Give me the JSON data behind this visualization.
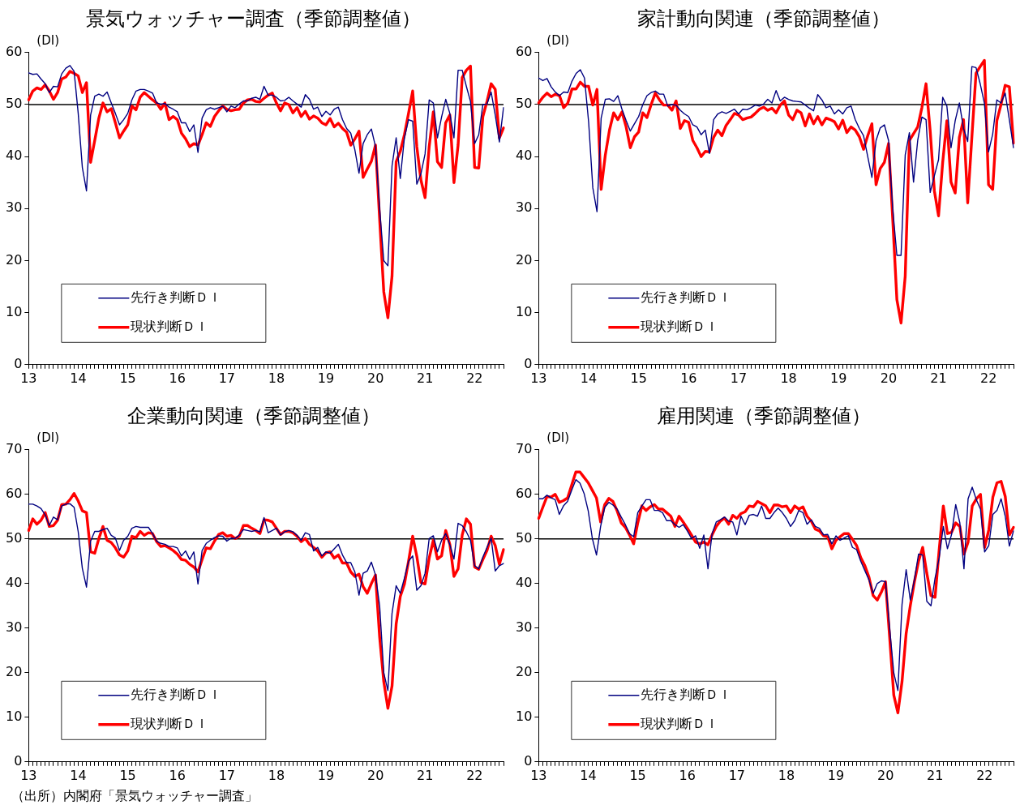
{
  "chart_data": [
    {
      "type": "line",
      "title": "景気ウォッチャー調査（季節調整値）",
      "ylabel": "(DI)",
      "legend": "bottom left",
      "ylim": [
        0,
        60
      ],
      "yticks": [
        0,
        10,
        20,
        30,
        40,
        50,
        60
      ],
      "ref_lines": [
        {
          "axis": "y",
          "value": 50,
          "color": "#000000"
        }
      ],
      "categories": [
        "13",
        null,
        null,
        null,
        null,
        null,
        null,
        null,
        null,
        null,
        null,
        null,
        "14",
        null,
        null,
        null,
        null,
        null,
        null,
        null,
        null,
        null,
        null,
        null,
        "15",
        null,
        null,
        null,
        null,
        null,
        null,
        null,
        null,
        null,
        null,
        null,
        "16",
        null,
        null,
        null,
        null,
        null,
        null,
        null,
        null,
        null,
        null,
        null,
        "17",
        null,
        null,
        null,
        null,
        null,
        null,
        null,
        null,
        null,
        null,
        null,
        "18",
        null,
        null,
        null,
        null,
        null,
        null,
        null,
        null,
        null,
        null,
        null,
        "19",
        null,
        null,
        null,
        null,
        null,
        null,
        null,
        null,
        null,
        null,
        null,
        "20",
        null,
        null,
        null,
        null,
        null,
        null,
        null,
        null,
        null,
        null,
        null,
        "21",
        null,
        null,
        null,
        null,
        null,
        null,
        null,
        null,
        null,
        null,
        null,
        "22",
        null,
        null,
        null,
        null,
        null,
        null,
        null
      ],
      "series": [
        {
          "name": "先行き判断ＤＩ",
          "color": "#000080",
          "values": [
            56.1,
            55.8,
            55.9,
            54.9,
            54,
            52.3,
            53.5,
            53.4,
            55.9,
            57,
            57.5,
            56.4,
            48.3,
            37.9,
            33.4,
            48,
            51.6,
            52,
            51.6,
            52.4,
            50.3,
            48.3,
            46.1,
            47.1,
            48.3,
            50.9,
            52.6,
            52.9,
            52.9,
            52.6,
            52.2,
            50.3,
            50.1,
            50.2,
            49.5,
            49.1,
            48.6,
            46.5,
            46.5,
            44.8,
            46.1,
            40.8,
            47.4,
            49,
            49.4,
            49.1,
            49.4,
            49.7,
            48.6,
            49.7,
            49.4,
            50.1,
            50.7,
            50.7,
            51.2,
            51.4,
            51,
            53.5,
            51.8,
            51.8,
            51.4,
            50.7,
            50.8,
            51.4,
            50.7,
            50.1,
            49.5,
            51.9,
            51,
            49.1,
            49.5,
            47.7,
            48.7,
            48,
            49.1,
            49.5,
            47.1,
            45.4,
            44.5,
            41.3,
            36.8,
            42.5,
            44.2,
            45.3,
            41.9,
            30,
            20,
            19,
            38.2,
            43.6,
            35.8,
            43.6,
            47.1,
            46.8,
            34.7,
            36.7,
            40.5,
            50.9,
            50.3,
            43.6,
            47.6,
            51,
            48.3,
            43.6,
            56.6,
            56.6,
            53.5,
            50.6,
            42.5,
            44.2,
            50,
            50.1,
            52.4,
            48,
            42.8,
            49.4
          ]
        },
        {
          "name": "現状判断ＤＩ",
          "color": "#ff0000",
          "values": [
            50.9,
            52.6,
            53.2,
            52.9,
            53.8,
            52.6,
            51,
            52.3,
            54.9,
            55.3,
            56.4,
            56,
            55.5,
            52.3,
            54.2,
            38.9,
            43.1,
            47.4,
            50.3,
            48.6,
            49.2,
            46.5,
            43.6,
            44.9,
            46.1,
            49.7,
            49,
            51.4,
            52.3,
            51.6,
            50.9,
            50.3,
            49.1,
            50.3,
            47.1,
            47.7,
            47.1,
            44.5,
            43.4,
            41.9,
            42.5,
            42.2,
            44.2,
            46.5,
            45.8,
            47.7,
            48.8,
            49.7,
            49.1,
            48.8,
            49,
            49.1,
            50.3,
            50.9,
            51,
            50.6,
            50.5,
            51.2,
            51.8,
            52.2,
            50.3,
            48.8,
            50.3,
            50,
            48.4,
            49.4,
            47.7,
            48.7,
            47.2,
            47.8,
            47.4,
            46.5,
            46.1,
            47.3,
            45.7,
            46.4,
            45.4,
            44.7,
            42.2,
            43.4,
            44.9,
            36,
            37.6,
            39.1,
            42.2,
            28,
            14,
            9,
            17,
            39,
            41,
            44.2,
            48.3,
            52.6,
            41.9,
            35.5,
            32.1,
            41.9,
            48.6,
            39,
            37.9,
            46.5,
            48,
            35,
            42.2,
            55.2,
            56.6,
            57.4,
            37.9,
            37.8,
            47.7,
            50.6,
            54,
            52.9,
            43.6,
            45.5
          ]
        }
      ]
    },
    {
      "type": "line",
      "title": "家計動向関連（季節調整値）",
      "ylabel": "(DI)",
      "legend": "bottom left",
      "ylim": [
        0,
        60
      ],
      "yticks": [
        0,
        10,
        20,
        30,
        40,
        50,
        60
      ],
      "ref_lines": [
        {
          "axis": "y",
          "value": 50,
          "color": "#000000"
        }
      ],
      "categories": [
        "13",
        null,
        null,
        null,
        null,
        null,
        null,
        null,
        null,
        null,
        null,
        null,
        "14",
        null,
        null,
        null,
        null,
        null,
        null,
        null,
        null,
        null,
        null,
        null,
        "15",
        null,
        null,
        null,
        null,
        null,
        null,
        null,
        null,
        null,
        null,
        null,
        "16",
        null,
        null,
        null,
        null,
        null,
        null,
        null,
        null,
        null,
        null,
        null,
        "17",
        null,
        null,
        null,
        null,
        null,
        null,
        null,
        null,
        null,
        null,
        null,
        "18",
        null,
        null,
        null,
        null,
        null,
        null,
        null,
        null,
        null,
        null,
        null,
        "19",
        null,
        null,
        null,
        null,
        null,
        null,
        null,
        null,
        null,
        null,
        null,
        "20",
        null,
        null,
        null,
        null,
        null,
        null,
        null,
        null,
        null,
        null,
        null,
        "21",
        null,
        null,
        null,
        null,
        null,
        null,
        null,
        null,
        null,
        null,
        null,
        "22",
        null,
        null,
        null,
        null,
        null,
        null
      ],
      "series": [
        {
          "name": "先行き判断ＤＩ",
          "color": "#000080",
          "values": [
            55.1,
            54.6,
            55,
            53.4,
            52.4,
            51.7,
            52.4,
            52.3,
            54.5,
            56,
            56.7,
            55.1,
            46.6,
            34,
            29.4,
            47.4,
            51,
            51.1,
            50.6,
            51.7,
            49.1,
            46.9,
            44.9,
            46.3,
            47.7,
            50,
            51.7,
            52.3,
            52.6,
            52,
            52,
            49.7,
            50,
            49.9,
            48.9,
            48.2,
            47.7,
            46.1,
            45.7,
            44.2,
            45.1,
            40.6,
            47.1,
            48.2,
            48.6,
            48.3,
            48.7,
            49.1,
            48.2,
            49.1,
            49,
            49.4,
            49.9,
            49.7,
            50.1,
            51,
            50.3,
            52.7,
            50.7,
            51.4,
            51,
            50.7,
            50.6,
            50.5,
            49.9,
            49.3,
            48.8,
            51.9,
            50.9,
            49.4,
            49.7,
            48.2,
            49,
            48.2,
            49.4,
            49.7,
            47.1,
            45.4,
            44,
            40,
            36,
            43.1,
            45.5,
            46.1,
            43.1,
            30,
            21,
            21,
            40.3,
            44.6,
            35.1,
            43.1,
            47.6,
            47.1,
            33.1,
            36.3,
            39.4,
            51.4,
            49.7,
            41.7,
            46.9,
            50.3,
            45.4,
            42.9,
            57.3,
            57.1,
            54,
            50.3,
            40.9,
            44.3,
            50.9,
            50.3,
            52.2,
            47.1,
            41.7
          ]
        },
        {
          "name": "現状判断ＤＩ",
          "color": "#ff0000",
          "values": [
            50.3,
            51.4,
            52.2,
            51.5,
            52,
            51.7,
            49.4,
            50.3,
            53,
            53,
            54.3,
            53.5,
            53.5,
            49.9,
            52.9,
            33.7,
            40.3,
            45.1,
            48.4,
            47.1,
            48.6,
            45.7,
            41.7,
            43.8,
            44.7,
            48.4,
            47.5,
            50,
            52.2,
            50.9,
            49.9,
            49.9,
            48.9,
            50.7,
            45.4,
            46.9,
            46.6,
            43.1,
            41.7,
            40,
            41,
            40.9,
            43.7,
            45.1,
            44,
            46,
            47.1,
            48.3,
            48,
            47.1,
            47.4,
            47.6,
            48.3,
            49.1,
            49.5,
            48.9,
            49.3,
            48.4,
            49.9,
            50.7,
            48,
            47.1,
            48.9,
            48.4,
            45.9,
            48.2,
            46.3,
            47.7,
            46.1,
            47.4,
            47.1,
            46.7,
            45.3,
            47,
            44.6,
            45.7,
            45.1,
            43.8,
            41.4,
            44,
            46.3,
            34.6,
            37.7,
            38.9,
            42.5,
            28,
            12.5,
            8,
            17,
            43.1,
            44.4,
            45.7,
            49.4,
            54,
            44.9,
            33.4,
            28.6,
            38.9,
            46.9,
            35.1,
            33,
            43.7,
            47.1,
            31.1,
            43.7,
            56,
            57.3,
            58.5,
            34.6,
            33.7,
            46.9,
            50,
            53.7,
            53.4,
            42.6
          ]
        }
      ]
    },
    {
      "type": "line",
      "title": "企業動向関連（季節調整値）",
      "ylabel": "(DI)",
      "legend": "bottom left",
      "ylim": [
        0,
        70
      ],
      "yticks": [
        0,
        10,
        20,
        30,
        40,
        50,
        60,
        70
      ],
      "ref_lines": [
        {
          "axis": "y",
          "value": 50,
          "color": "#000000"
        }
      ],
      "annotations": [
        "（出所）内閣府「景気ウォッチャー調査」"
      ],
      "categories": [
        "13",
        null,
        null,
        null,
        null,
        null,
        null,
        null,
        null,
        null,
        null,
        null,
        "14",
        null,
        null,
        null,
        null,
        null,
        null,
        null,
        null,
        null,
        null,
        null,
        "15",
        null,
        null,
        null,
        null,
        null,
        null,
        null,
        null,
        null,
        null,
        null,
        "16",
        null,
        null,
        null,
        null,
        null,
        null,
        null,
        null,
        null,
        null,
        null,
        "17",
        null,
        null,
        null,
        null,
        null,
        null,
        null,
        null,
        null,
        null,
        null,
        "18",
        null,
        null,
        null,
        null,
        null,
        null,
        null,
        null,
        null,
        null,
        null,
        "19",
        null,
        null,
        null,
        null,
        null,
        null,
        null,
        null,
        null,
        null,
        null,
        "20",
        null,
        null,
        null,
        null,
        null,
        null,
        null,
        null,
        null,
        null,
        null,
        "21",
        null,
        null,
        null,
        null,
        null,
        null,
        null,
        null,
        null,
        null,
        null,
        "22",
        null,
        null,
        null,
        null,
        null,
        null,
        null
      ],
      "series": [
        {
          "name": "先行き判断ＤＩ",
          "color": "#000080",
          "values": [
            57.8,
            57.8,
            57.4,
            56.8,
            55.4,
            53,
            54.9,
            54.3,
            57.4,
            57.8,
            57.9,
            57.1,
            51.6,
            43.4,
            39.2,
            49.5,
            51.7,
            51.7,
            52.1,
            52.4,
            50.8,
            50.2,
            47.4,
            49.7,
            50.6,
            52.4,
            52.8,
            52.6,
            52.6,
            52.6,
            51.2,
            49.5,
            49,
            48.8,
            48.3,
            48.3,
            48,
            46.2,
            47.3,
            45.4,
            47.1,
            39.9,
            47.4,
            49,
            49.7,
            50.3,
            50.7,
            50.6,
            49.5,
            50.2,
            50.1,
            50.9,
            52.1,
            51.9,
            51.7,
            51.9,
            51.6,
            54.8,
            51.4,
            51.9,
            52.4,
            50.9,
            51.6,
            51.9,
            51.6,
            50.8,
            49.7,
            51.4,
            51,
            47.3,
            48.1,
            46.2,
            47.1,
            46.8,
            47.8,
            48.8,
            46.4,
            44.7,
            44.7,
            42.6,
            37.4,
            42.3,
            42.8,
            44.8,
            41.9,
            35,
            20,
            16,
            33.3,
            39.5,
            37.8,
            41.2,
            45,
            46.2,
            38.5,
            39.5,
            42.3,
            50.1,
            50.7,
            47.1,
            49.7,
            51.2,
            48.7,
            45.5,
            53.5,
            53,
            51.6,
            49.7,
            44,
            43.3,
            45.9,
            48.1,
            50.2,
            42.8,
            44,
            44.5
          ]
        },
        {
          "name": "現状判断ＤＩ",
          "color": "#ff0000",
          "values": [
            51.9,
            54.5,
            53.3,
            54.2,
            55.9,
            52.8,
            53,
            54.2,
            57.7,
            57.8,
            58.8,
            60.2,
            58.5,
            56.3,
            55.9,
            47.1,
            46.8,
            50.1,
            52.8,
            49.7,
            49.2,
            48,
            46.4,
            45.9,
            47.3,
            50.6,
            50.3,
            51.7,
            50.8,
            51.4,
            51.2,
            49.4,
            48.3,
            48.5,
            48,
            47.4,
            46.6,
            45.4,
            45.2,
            44.3,
            43.7,
            42.6,
            45.4,
            48,
            47.8,
            49.5,
            51,
            51.4,
            50.6,
            50.8,
            50.1,
            50.6,
            53,
            53,
            52.4,
            51.9,
            51.2,
            54.3,
            54.2,
            53.8,
            52.4,
            51,
            51.7,
            51.7,
            51.4,
            50.6,
            49.4,
            50.1,
            48.8,
            48.1,
            47.3,
            45.9,
            46.9,
            47.1,
            45.7,
            46.4,
            44.6,
            44.6,
            42.6,
            41.6,
            42.1,
            39.3,
            37.8,
            40,
            41.9,
            28,
            18,
            12,
            17,
            30.9,
            37.1,
            39.9,
            45,
            50.6,
            46.1,
            40.2,
            39.9,
            45.7,
            49.7,
            45.5,
            46.2,
            51.9,
            48.8,
            41.6,
            43.3,
            50.9,
            54.5,
            53.3,
            43.7,
            43.2,
            45.4,
            47.4,
            50.6,
            48.5,
            44.3,
            47.6
          ]
        }
      ]
    },
    {
      "type": "line",
      "title": "雇用関連（季節調整値）",
      "ylabel": "(DI)",
      "legend": "bottom left",
      "ylim": [
        0,
        70
      ],
      "yticks": [
        0,
        10,
        20,
        30,
        40,
        50,
        60,
        70
      ],
      "ref_lines": [
        {
          "axis": "y",
          "value": 50,
          "color": "#000000"
        }
      ],
      "categories": [
        "13",
        null,
        null,
        null,
        null,
        null,
        null,
        null,
        null,
        null,
        null,
        null,
        "14",
        null,
        null,
        null,
        null,
        null,
        null,
        null,
        null,
        null,
        null,
        null,
        "15",
        null,
        null,
        null,
        null,
        null,
        null,
        null,
        null,
        null,
        null,
        null,
        "16",
        null,
        null,
        null,
        null,
        null,
        null,
        null,
        null,
        null,
        null,
        null,
        "17",
        null,
        null,
        null,
        null,
        null,
        null,
        null,
        null,
        null,
        null,
        null,
        "18",
        null,
        null,
        null,
        null,
        null,
        null,
        null,
        null,
        null,
        null,
        null,
        "19",
        null,
        null,
        null,
        null,
        null,
        null,
        null,
        null,
        null,
        null,
        null,
        "20",
        null,
        null,
        null,
        null,
        null,
        null,
        null,
        null,
        null,
        null,
        null,
        "21",
        null,
        null,
        null,
        null,
        null,
        null,
        null,
        null,
        null,
        null,
        null,
        "22",
        null,
        null,
        null,
        null,
        null,
        null,
        null
      ],
      "series": [
        {
          "name": "先行き判断ＤＩ",
          "color": "#000080",
          "values": [
            59,
            59,
            59.8,
            59.2,
            58.8,
            55.5,
            57.4,
            58.4,
            60.9,
            63.3,
            62.5,
            60.2,
            56.3,
            50.1,
            46.4,
            52.8,
            57.1,
            58.2,
            57.6,
            56.7,
            54.9,
            53.2,
            51.2,
            50.5,
            55.9,
            57.4,
            58.8,
            58.8,
            56.4,
            56.4,
            55.9,
            54.1,
            54.1,
            53.2,
            52.6,
            53.2,
            51.8,
            50.1,
            50.7,
            47.9,
            50.9,
            43.3,
            51.2,
            53.8,
            54.3,
            54.9,
            54,
            53.8,
            50.9,
            55.1,
            53.2,
            55.3,
            55.5,
            55.1,
            57.4,
            54.6,
            54.6,
            55.9,
            56.9,
            55.9,
            54.6,
            52.8,
            54.1,
            56.4,
            55.9,
            53.3,
            54.3,
            52.8,
            52.4,
            50.9,
            51,
            48.9,
            50.7,
            49.7,
            50.2,
            50.7,
            48.1,
            47.6,
            45,
            42.9,
            40.8,
            37.8,
            40,
            40.6,
            40.4,
            30,
            20,
            16,
            35.3,
            43.1,
            36.3,
            40.9,
            46.6,
            46.4,
            36,
            35,
            41.2,
            45.8,
            52.8,
            47.8,
            51,
            57.7,
            53.6,
            43.3,
            59,
            61.6,
            58.8,
            56.7,
            47.1,
            48.5,
            55.5,
            56.4,
            59,
            55.1,
            48.4,
            51.8
          ]
        },
        {
          "name": "現状判断ＤＩ",
          "color": "#ff0000",
          "values": [
            54.6,
            57.1,
            59.5,
            59.4,
            60,
            58.2,
            58.6,
            59.2,
            62.1,
            65,
            65,
            63.8,
            62.6,
            60.9,
            59.2,
            53.8,
            57.7,
            59.1,
            58.4,
            56.3,
            53.6,
            52.6,
            50.9,
            48.9,
            53.6,
            57.4,
            56.4,
            57.2,
            57.7,
            56.7,
            56.7,
            55.9,
            55.1,
            52.8,
            55.1,
            53.8,
            52.4,
            50.9,
            49.3,
            48.9,
            49.3,
            48.7,
            50.9,
            52.8,
            54,
            54.7,
            53.3,
            55.3,
            54.6,
            55.7,
            56.1,
            57.4,
            57.2,
            58.4,
            57.9,
            57.4,
            55.9,
            57.6,
            57.6,
            57.2,
            57.4,
            55.9,
            57.4,
            56.7,
            57.2,
            55.1,
            54,
            52.2,
            51.8,
            50.7,
            50.5,
            47.8,
            49.7,
            50.5,
            51.2,
            51.2,
            49.9,
            48.5,
            45.8,
            44,
            41.4,
            37.3,
            36.3,
            38.1,
            40.4,
            28,
            15,
            11,
            18,
            28.8,
            35,
            40.4,
            45,
            48.1,
            42.3,
            37.3,
            36.9,
            47.6,
            57.4,
            51.2,
            51.5,
            53.6,
            52.8,
            46.6,
            49.3,
            57.4,
            59,
            60,
            48.1,
            52,
            59.4,
            62.6,
            62.9,
            59.5,
            50.9,
            52.6
          ]
        }
      ]
    }
  ]
}
